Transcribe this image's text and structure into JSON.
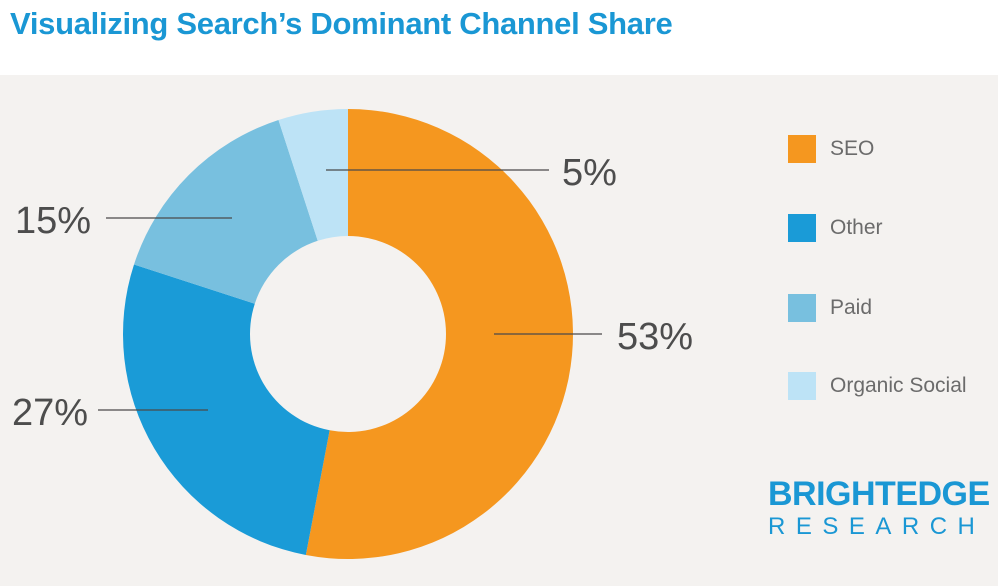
{
  "title": "Visualizing Search’s Dominant Channel Share",
  "chart_data": {
    "type": "pie",
    "subtype": "donut",
    "title": "Visualizing Search’s Dominant Channel Share",
    "categories": [
      "SEO",
      "Other",
      "Paid",
      "Organic Social"
    ],
    "values": [
      53,
      27,
      15,
      5
    ],
    "labels": [
      "53%",
      "27%",
      "15%",
      "5%"
    ],
    "colors": [
      "#f5971f",
      "#1a9bd7",
      "#78c0df",
      "#bde3f6"
    ],
    "legend_position": "right"
  },
  "legend": {
    "items": [
      {
        "label": "SEO",
        "color": "#f5971f"
      },
      {
        "label": "Other",
        "color": "#1a9bd7"
      },
      {
        "label": "Paid",
        "color": "#78c0df"
      },
      {
        "label": "Organic Social",
        "color": "#bde3f6"
      }
    ]
  },
  "logo": {
    "main": "BRIGHTEDGE",
    "sub": "RESEARCH"
  },
  "colors": {
    "accent": "#1a97d4",
    "background": "#f4f2f0"
  }
}
